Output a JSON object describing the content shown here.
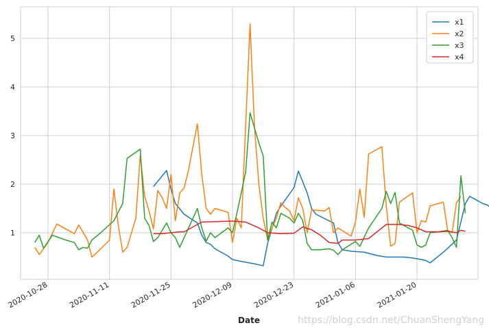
{
  "chart_data": {
    "type": "line",
    "title": "",
    "xlabel": "Date",
    "ylabel": "",
    "x_start": "2020-10-26",
    "x_end": "2021-02-01",
    "ylim": [
      0,
      5.5
    ],
    "yticks": [
      1,
      2,
      3,
      4,
      5
    ],
    "xticks": [
      "2020-10-28",
      "2020-11-11",
      "2020-11-25",
      "2020-12-09",
      "2020-12-23",
      "2021-01-06",
      "2021-01-20"
    ],
    "grid": true,
    "legend_position": "top-right",
    "series": [
      {
        "name": "x1",
        "color": "#1f77b4",
        "points": [
          [
            "2020-11-21",
            1.95
          ],
          [
            "2020-11-24",
            2.28
          ],
          [
            "2020-11-25",
            1.9
          ],
          [
            "2020-11-26",
            1.6
          ],
          [
            "2020-11-28",
            1.38
          ],
          [
            "2020-12-01",
            1.2
          ],
          [
            "2020-12-02",
            0.95
          ],
          [
            "2020-12-03",
            0.8
          ],
          [
            "2020-12-04",
            0.76
          ],
          [
            "2020-12-05",
            0.67
          ],
          [
            "2020-12-08",
            0.52
          ],
          [
            "2020-12-09",
            0.45
          ],
          [
            "2020-12-11",
            0.41
          ],
          [
            "2020-12-14",
            0.36
          ],
          [
            "2020-12-16",
            0.32
          ],
          [
            "2020-12-17",
            0.78
          ],
          [
            "2020-12-19",
            1.4
          ],
          [
            "2020-12-20",
            1.55
          ],
          [
            "2020-12-23",
            1.93
          ],
          [
            "2020-12-24",
            2.27
          ],
          [
            "2020-12-26",
            1.82
          ],
          [
            "2020-12-27",
            1.5
          ],
          [
            "2020-12-28",
            1.38
          ],
          [
            "2021-01-01",
            1.2
          ],
          [
            "2021-01-02",
            0.8
          ],
          [
            "2021-01-03",
            0.65
          ],
          [
            "2021-01-05",
            0.62
          ],
          [
            "2021-01-08",
            0.6
          ],
          [
            "2021-01-11",
            0.53
          ],
          [
            "2021-01-13",
            0.5
          ],
          [
            "2021-01-17",
            0.5
          ],
          [
            "2021-01-19",
            0.48
          ],
          [
            "2021-01-21",
            0.45
          ],
          [
            "2021-01-22",
            0.43
          ],
          [
            "2021-01-23",
            0.38
          ],
          [
            "2021-01-26",
            0.6
          ],
          [
            "2021-01-27",
            0.68
          ],
          [
            "2021-01-29",
            0.85
          ],
          [
            "2021-01-31",
            1.6
          ],
          [
            "2021-02-01",
            1.75
          ],
          [
            "2021-02-04",
            1.6
          ],
          [
            "2021-02-05",
            1.57
          ],
          [
            "2021-02-06",
            1.5
          ],
          [
            "2021-02-08",
            1.43
          ],
          [
            "2021-02-10",
            1.33
          ],
          [
            "2021-02-12",
            1.3
          ],
          [
            "2021-02-13",
            1.15
          ]
        ]
      },
      {
        "name": "x2",
        "color": "#ff7f0e",
        "points": [
          [
            "2020-10-25",
            0.7
          ],
          [
            "2020-10-26",
            0.55
          ],
          [
            "2020-10-28",
            0.8
          ],
          [
            "2020-10-30",
            1.18
          ],
          [
            "2020-11-01",
            1.08
          ],
          [
            "2020-11-03",
            0.98
          ],
          [
            "2020-11-04",
            1.16
          ],
          [
            "2020-11-06",
            0.85
          ],
          [
            "2020-11-07",
            0.5
          ],
          [
            "2020-11-08",
            0.58
          ],
          [
            "2020-11-11",
            0.85
          ],
          [
            "2020-11-12",
            1.9
          ],
          [
            "2020-11-13",
            1.15
          ],
          [
            "2020-11-14",
            0.6
          ],
          [
            "2020-11-15",
            0.7
          ],
          [
            "2020-11-17",
            1.3
          ],
          [
            "2020-11-18",
            2.6
          ],
          [
            "2020-11-19",
            1.75
          ],
          [
            "2020-11-20",
            1.45
          ],
          [
            "2020-11-21",
            1.08
          ],
          [
            "2020-11-22",
            1.87
          ],
          [
            "2020-11-23",
            1.72
          ],
          [
            "2020-11-24",
            1.5
          ],
          [
            "2020-11-25",
            2.2
          ],
          [
            "2020-11-26",
            1.25
          ],
          [
            "2020-11-27",
            1.82
          ],
          [
            "2020-11-28",
            1.92
          ],
          [
            "2020-11-29",
            2.3
          ],
          [
            "2020-12-01",
            3.24
          ],
          [
            "2020-12-02",
            2.2
          ],
          [
            "2020-12-03",
            1.5
          ],
          [
            "2020-12-04",
            1.38
          ],
          [
            "2020-12-05",
            1.5
          ],
          [
            "2020-12-08",
            1.42
          ],
          [
            "2020-12-09",
            0.8
          ],
          [
            "2020-12-10",
            1.3
          ],
          [
            "2020-12-11",
            1.1
          ],
          [
            "2020-12-13",
            5.3
          ],
          [
            "2020-12-14",
            3.2
          ],
          [
            "2020-12-15",
            2.0
          ],
          [
            "2020-12-16",
            1.3
          ],
          [
            "2020-12-17",
            0.85
          ],
          [
            "2020-12-18",
            1.1
          ],
          [
            "2020-12-19",
            1.3
          ],
          [
            "2020-12-20",
            1.62
          ],
          [
            "2020-12-21",
            1.52
          ],
          [
            "2020-12-22",
            1.45
          ],
          [
            "2020-12-23",
            1.25
          ],
          [
            "2020-12-24",
            1.72
          ],
          [
            "2020-12-25",
            1.5
          ],
          [
            "2020-12-26",
            1.0
          ],
          [
            "2020-12-27",
            1.47
          ],
          [
            "2020-12-30",
            1.45
          ],
          [
            "2020-12-31",
            1.52
          ],
          [
            "2021-01-01",
            1.0
          ],
          [
            "2021-01-02",
            1.1
          ],
          [
            "2021-01-05",
            0.93
          ],
          [
            "2021-01-06",
            1.22
          ],
          [
            "2021-01-07",
            1.9
          ],
          [
            "2021-01-08",
            1.32
          ],
          [
            "2021-01-09",
            2.62
          ],
          [
            "2021-01-11",
            2.72
          ],
          [
            "2021-01-12",
            2.77
          ],
          [
            "2021-01-13",
            1.55
          ],
          [
            "2021-01-14",
            0.72
          ],
          [
            "2021-01-15",
            0.78
          ],
          [
            "2021-01-16",
            1.63
          ],
          [
            "2021-01-19",
            1.82
          ],
          [
            "2021-01-20",
            1.0
          ],
          [
            "2021-01-21",
            1.25
          ],
          [
            "2021-01-22",
            1.22
          ],
          [
            "2021-01-23",
            1.55
          ],
          [
            "2021-01-24",
            1.58
          ],
          [
            "2021-01-26",
            1.63
          ],
          [
            "2021-01-27",
            1.05
          ],
          [
            "2021-01-28",
            1.0
          ],
          [
            "2021-01-29",
            1.62
          ],
          [
            "2021-01-30",
            1.75
          ]
        ]
      },
      {
        "name": "x3",
        "color": "#2ca02c",
        "points": [
          [
            "2020-10-25",
            0.8
          ],
          [
            "2020-10-26",
            0.95
          ],
          [
            "2020-10-27",
            0.68
          ],
          [
            "2020-10-29",
            0.95
          ],
          [
            "2020-11-01",
            0.85
          ],
          [
            "2020-11-03",
            0.8
          ],
          [
            "2020-11-04",
            0.65
          ],
          [
            "2020-11-05",
            0.7
          ],
          [
            "2020-11-06",
            0.68
          ],
          [
            "2020-11-07",
            0.85
          ],
          [
            "2020-11-09",
            1.0
          ],
          [
            "2020-11-12",
            1.25
          ],
          [
            "2020-11-14",
            1.6
          ],
          [
            "2020-11-15",
            2.53
          ],
          [
            "2020-11-18",
            2.72
          ],
          [
            "2020-11-19",
            1.3
          ],
          [
            "2020-11-20",
            1.15
          ],
          [
            "2020-11-21",
            0.82
          ],
          [
            "2020-11-22",
            0.9
          ],
          [
            "2020-11-24",
            1.2
          ],
          [
            "2020-11-25",
            1.0
          ],
          [
            "2020-11-26",
            0.9
          ],
          [
            "2020-11-27",
            0.7
          ],
          [
            "2020-11-29",
            1.1
          ],
          [
            "2020-12-01",
            1.5
          ],
          [
            "2020-12-02",
            1.1
          ],
          [
            "2020-12-03",
            0.83
          ],
          [
            "2020-12-04",
            1.0
          ],
          [
            "2020-12-05",
            0.9
          ],
          [
            "2020-12-08",
            1.1
          ],
          [
            "2020-12-09",
            1.0
          ],
          [
            "2020-12-10",
            1.4
          ],
          [
            "2020-12-12",
            2.25
          ],
          [
            "2020-12-13",
            3.47
          ],
          [
            "2020-12-15",
            2.85
          ],
          [
            "2020-12-16",
            2.58
          ],
          [
            "2020-12-17",
            0.85
          ],
          [
            "2020-12-18",
            1.22
          ],
          [
            "2020-12-19",
            1.1
          ],
          [
            "2020-12-20",
            1.4
          ],
          [
            "2020-12-22",
            1.3
          ],
          [
            "2020-12-23",
            1.2
          ],
          [
            "2020-12-24",
            1.4
          ],
          [
            "2020-12-25",
            1.25
          ],
          [
            "2020-12-26",
            0.78
          ],
          [
            "2020-12-27",
            0.65
          ],
          [
            "2020-12-29",
            0.65
          ],
          [
            "2020-12-31",
            0.67
          ],
          [
            "2021-01-01",
            0.64
          ],
          [
            "2021-01-02",
            0.55
          ],
          [
            "2021-01-03",
            0.65
          ],
          [
            "2021-01-06",
            0.82
          ],
          [
            "2021-01-07",
            0.72
          ],
          [
            "2021-01-09",
            1.1
          ],
          [
            "2021-01-12",
            1.5
          ],
          [
            "2021-01-13",
            1.85
          ],
          [
            "2021-01-14",
            1.6
          ],
          [
            "2021-01-15",
            1.83
          ],
          [
            "2021-01-16",
            1.2
          ],
          [
            "2021-01-19",
            1.05
          ],
          [
            "2021-01-20",
            0.75
          ],
          [
            "2021-01-21",
            0.7
          ],
          [
            "2021-01-22",
            0.75
          ],
          [
            "2021-01-23",
            1.0
          ],
          [
            "2021-01-25",
            1.02
          ],
          [
            "2021-01-27",
            1.05
          ],
          [
            "2021-01-28",
            0.9
          ],
          [
            "2021-01-29",
            0.7
          ],
          [
            "2021-01-30",
            2.17
          ],
          [
            "2021-01-31",
            1.4
          ]
        ]
      },
      {
        "name": "x4",
        "color": "#d62728",
        "points": [
          [
            "2020-11-21",
            0.98
          ],
          [
            "2020-11-23",
            0.98
          ],
          [
            "2020-11-25",
            1.0
          ],
          [
            "2020-11-27",
            1.02
          ],
          [
            "2020-11-28",
            1.02
          ],
          [
            "2020-11-30",
            1.12
          ],
          [
            "2020-12-02",
            1.22
          ],
          [
            "2020-12-05",
            1.23
          ],
          [
            "2020-12-09",
            1.24
          ],
          [
            "2020-12-12",
            1.22
          ],
          [
            "2020-12-15",
            1.1
          ],
          [
            "2020-12-17",
            1.0
          ],
          [
            "2020-12-20",
            0.98
          ],
          [
            "2020-12-23",
            0.99
          ],
          [
            "2020-12-25",
            1.12
          ],
          [
            "2020-12-27",
            1.06
          ],
          [
            "2020-12-29",
            0.95
          ],
          [
            "2020-12-31",
            0.8
          ],
          [
            "2021-01-02",
            0.78
          ],
          [
            "2021-01-03",
            0.85
          ],
          [
            "2021-01-06",
            0.85
          ],
          [
            "2021-01-09",
            0.88
          ],
          [
            "2021-01-12",
            1.1
          ],
          [
            "2021-01-13",
            1.17
          ],
          [
            "2021-01-16",
            1.17
          ],
          [
            "2021-01-18",
            1.15
          ],
          [
            "2021-01-20",
            1.1
          ],
          [
            "2021-01-22",
            1.02
          ],
          [
            "2021-01-25",
            1.02
          ],
          [
            "2021-01-27",
            1.03
          ],
          [
            "2021-01-29",
            1.0
          ],
          [
            "2021-01-30",
            1.05
          ],
          [
            "2021-01-31",
            1.03
          ]
        ]
      }
    ]
  },
  "watermark": "https://blog.csdn.net/ChuanShengYang"
}
